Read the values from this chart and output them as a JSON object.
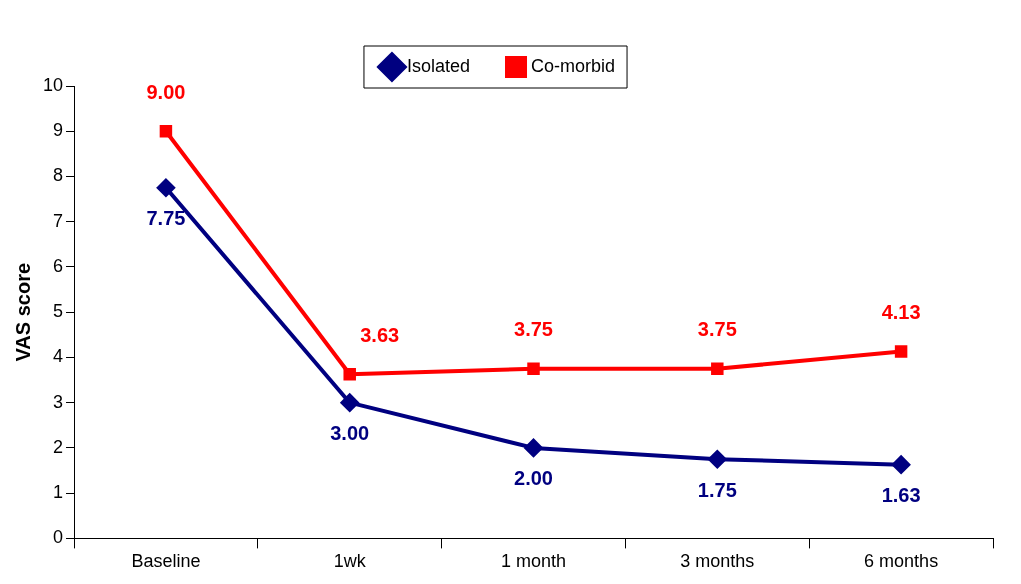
{
  "chart_data": {
    "type": "line",
    "categories": [
      "Baseline",
      "1wk",
      "1 month",
      "3 months",
      "6 months"
    ],
    "ylabel": "VAS score",
    "ylim": [
      0,
      10
    ],
    "yticks": [
      0,
      1,
      2,
      3,
      4,
      5,
      6,
      7,
      8,
      9,
      10
    ],
    "grid": false,
    "legend": "top",
    "series": [
      {
        "name": "Isolated",
        "color": "#000080",
        "marker": "diamond",
        "values": [
          7.75,
          3.0,
          2.0,
          1.75,
          1.63
        ],
        "value_labels": [
          "7.75",
          "3.00",
          "2.00",
          "1.75",
          "1.63"
        ]
      },
      {
        "name": "Co-morbid",
        "color": "#ff0000",
        "marker": "square",
        "values": [
          9.0,
          3.63,
          3.75,
          3.75,
          4.13
        ],
        "value_labels": [
          "9.00",
          "3.63",
          "3.75",
          "3.75",
          "4.13"
        ]
      }
    ]
  }
}
